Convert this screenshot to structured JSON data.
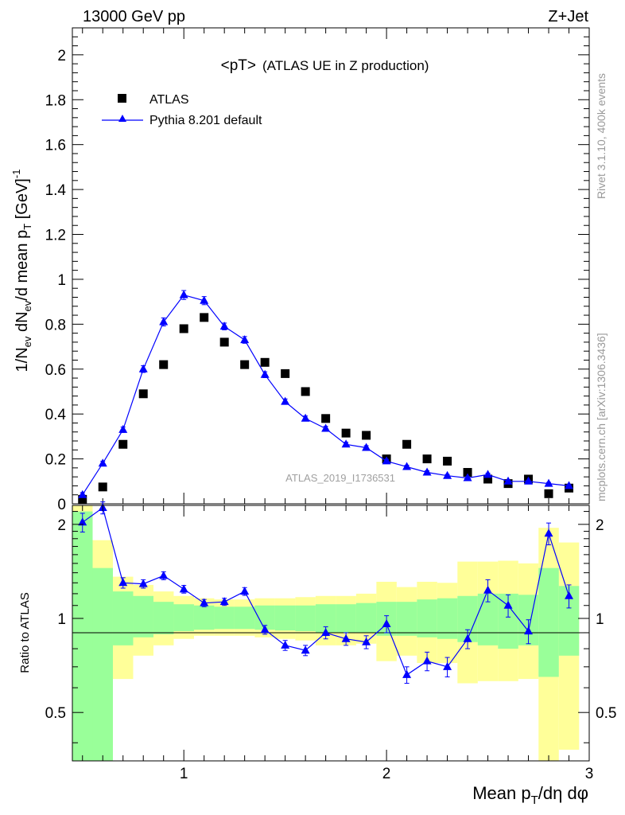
{
  "header": {
    "left": "13000 GeV pp",
    "right": "Z+Jet"
  },
  "side_labels": {
    "rivet": "Rivet 3.1.10,  400k events",
    "source": "mcplots.cern.ch [arXiv:1306.3436]"
  },
  "colors": {
    "data": "#000000",
    "mc": "#0000ff",
    "band_inner": "#99ff99",
    "band_outer": "#ffff99"
  },
  "chart_data": [
    {
      "type": "scatter",
      "title_main": "<pT>",
      "title_sub": "(ATLAS UE in Z production)",
      "analysis_id": "ATLAS_2019_I1736531",
      "ylabel": "1/N_ev dN_ev/d mean p_T [GeV]^-1",
      "xlim": [
        0.45,
        3.0
      ],
      "ylim": [
        0,
        2.12
      ],
      "yticks": [
        "0",
        "0.2",
        "0.4",
        "0.6",
        "0.8",
        "1",
        "1.2",
        "1.4",
        "1.6",
        "1.8",
        "2"
      ],
      "x": [
        0.5,
        0.6,
        0.7,
        0.8,
        0.9,
        1.0,
        1.1,
        1.2,
        1.3,
        1.4,
        1.5,
        1.6,
        1.7,
        1.8,
        1.9,
        2.0,
        2.1,
        2.2,
        2.3,
        2.4,
        2.5,
        2.6,
        2.7,
        2.8,
        2.9
      ],
      "series": [
        {
          "name": "ATLAS",
          "marker": "square",
          "values": [
            0.02,
            0.075,
            0.265,
            0.49,
            0.62,
            0.78,
            0.83,
            0.72,
            0.62,
            0.63,
            0.58,
            0.5,
            0.38,
            0.315,
            0.305,
            0.2,
            0.265,
            0.2,
            0.19,
            0.14,
            0.11,
            0.09,
            0.11,
            0.045,
            0.07
          ]
        },
        {
          "name": "Pythia 8.201 default",
          "marker": "triangle-line",
          "values": [
            0.04,
            0.18,
            0.33,
            0.6,
            0.81,
            0.93,
            0.905,
            0.79,
            0.73,
            0.575,
            0.455,
            0.38,
            0.335,
            0.265,
            0.25,
            0.19,
            0.165,
            0.14,
            0.125,
            0.115,
            0.13,
            0.1,
            0.1,
            0.09,
            0.08
          ],
          "errors": [
            0.01,
            0.01,
            0.012,
            0.015,
            0.018,
            0.02,
            0.018,
            0.015,
            0.015,
            0.013,
            0.012,
            0.011,
            0.01,
            0.009,
            0.009,
            0.008,
            0.007,
            0.007,
            0.006,
            0.006,
            0.006,
            0.005,
            0.005,
            0.005,
            0.005
          ]
        }
      ]
    },
    {
      "type": "line",
      "ylabel": "Ratio to ATLAS",
      "xlabel": "Mean p_T/dη dφ",
      "xlim": [
        0.45,
        3.0
      ],
      "ylim": [
        0.35,
        2.3
      ],
      "xticks": [
        "1",
        "2",
        "3"
      ],
      "yticks": [
        "0.5",
        "1",
        "2"
      ],
      "reference": 1,
      "bands": {
        "edges": [
          0.45,
          0.55,
          0.65,
          0.75,
          0.85,
          0.95,
          1.05,
          1.15,
          1.25,
          1.35,
          1.45,
          1.55,
          1.65,
          1.75,
          1.85,
          1.95,
          2.05,
          2.15,
          2.25,
          2.35,
          2.45,
          2.55,
          2.65,
          2.75,
          2.85,
          2.95
        ],
        "inner_low": [
          0.35,
          0.35,
          0.82,
          0.87,
          0.89,
          0.91,
          0.92,
          0.925,
          0.925,
          0.92,
          0.915,
          0.91,
          0.9,
          0.9,
          0.9,
          0.88,
          0.88,
          0.87,
          0.86,
          0.84,
          0.82,
          0.8,
          0.82,
          0.65,
          0.76
        ],
        "inner_high": [
          2.2,
          1.45,
          1.22,
          1.18,
          1.13,
          1.11,
          1.1,
          1.09,
          1.09,
          1.1,
          1.1,
          1.1,
          1.11,
          1.11,
          1.12,
          1.13,
          1.13,
          1.15,
          1.16,
          1.18,
          1.2,
          1.2,
          1.19,
          1.45,
          1.27
        ],
        "outer_low": [
          0.35,
          0.35,
          0.64,
          0.76,
          0.82,
          0.86,
          0.88,
          0.88,
          0.88,
          0.87,
          0.86,
          0.85,
          0.82,
          0.82,
          0.83,
          0.73,
          0.76,
          0.72,
          0.72,
          0.62,
          0.63,
          0.63,
          0.64,
          0.35,
          0.38
        ],
        "outer_high": [
          2.3,
          1.78,
          1.36,
          1.28,
          1.22,
          1.18,
          1.16,
          1.15,
          1.15,
          1.16,
          1.16,
          1.17,
          1.18,
          1.18,
          1.2,
          1.31,
          1.26,
          1.31,
          1.3,
          1.52,
          1.52,
          1.53,
          1.5,
          1.95,
          1.75
        ]
      },
      "x": [
        0.5,
        0.6,
        0.7,
        0.8,
        0.9,
        1.0,
        1.1,
        1.2,
        1.3,
        1.4,
        1.5,
        1.6,
        1.7,
        1.8,
        1.9,
        2.0,
        2.1,
        2.2,
        2.3,
        2.4,
        2.5,
        2.6,
        2.7,
        2.8,
        2.9
      ],
      "series": [
        {
          "name": "Pythia 8.201 default",
          "values": [
            2.03,
            2.26,
            1.3,
            1.29,
            1.37,
            1.24,
            1.12,
            1.13,
            1.22,
            0.92,
            0.82,
            0.79,
            0.9,
            0.86,
            0.84,
            0.96,
            0.66,
            0.73,
            0.7,
            0.86,
            1.23,
            1.1,
            0.91,
            1.87,
            1.18
          ],
          "errors": [
            0.14,
            0.1,
            0.05,
            0.04,
            0.04,
            0.035,
            0.03,
            0.03,
            0.035,
            0.03,
            0.03,
            0.03,
            0.04,
            0.04,
            0.04,
            0.06,
            0.04,
            0.05,
            0.05,
            0.06,
            0.1,
            0.09,
            0.08,
            0.15,
            0.1
          ]
        }
      ]
    }
  ]
}
